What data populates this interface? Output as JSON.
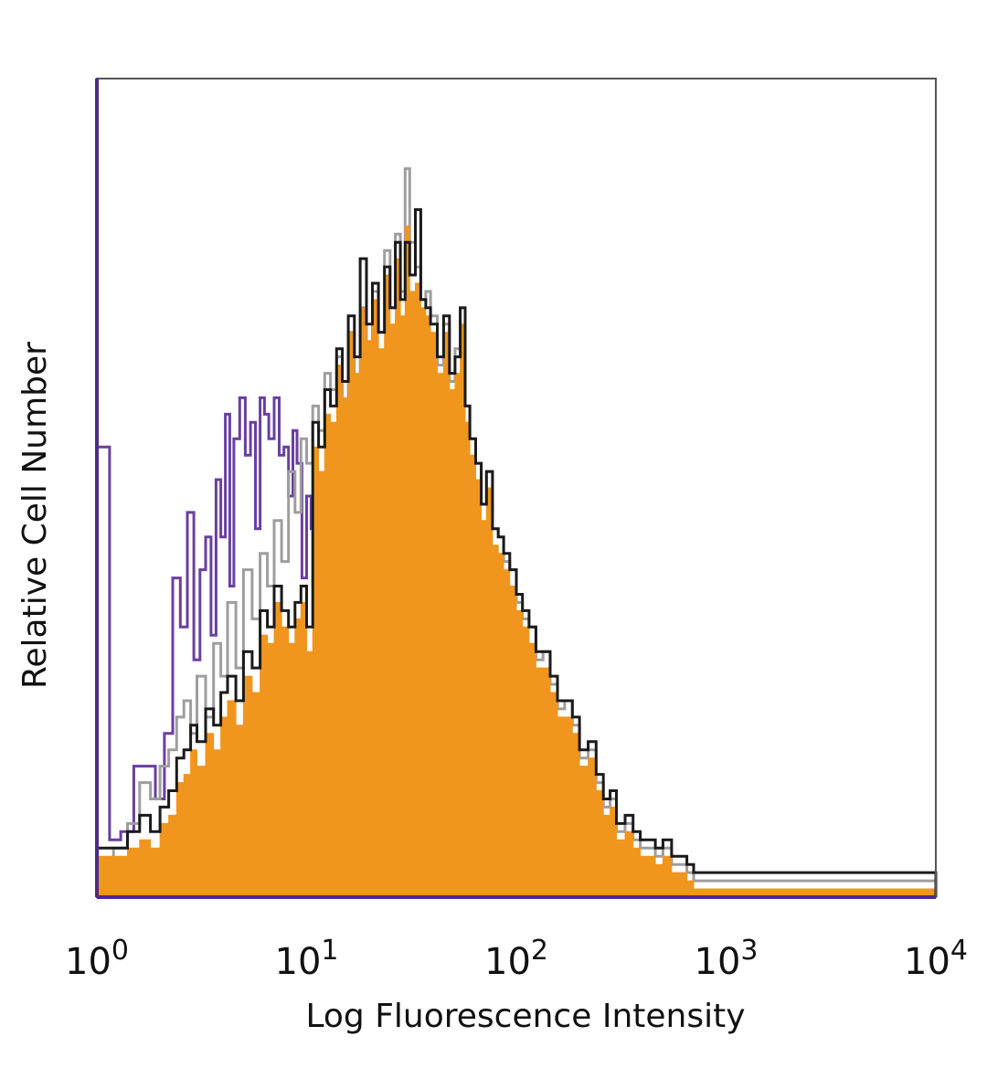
{
  "chart_data": {
    "type": "area",
    "title": "",
    "xlabel": "Log Fluorescence Intensity",
    "ylabel": "Relative Cell Number",
    "x_scale": "log",
    "xlim": [
      1,
      10000
    ],
    "ylim": [
      0,
      100
    ],
    "grid": false,
    "legend": "none",
    "x_ticks": [
      {
        "base": "10",
        "exp": "0"
      },
      {
        "base": "10",
        "exp": "1"
      },
      {
        "base": "10",
        "exp": "2"
      },
      {
        "base": "10",
        "exp": "3"
      },
      {
        "base": "10",
        "exp": "4"
      }
    ],
    "series": [
      {
        "color": "#6a3fa0",
        "style": "line",
        "x": [
          1.0,
          1.15,
          1.3,
          1.5,
          1.7,
          1.9,
          2.1,
          2.3,
          2.5,
          2.7,
          2.9,
          3.1,
          3.3,
          3.5,
          3.7,
          3.9,
          4.1,
          4.3,
          4.5,
          4.8,
          5.1,
          5.4,
          5.7,
          6.0,
          6.3,
          6.6,
          7.0,
          7.4,
          7.8,
          8.2,
          8.6,
          9.0,
          9.5,
          10.0,
          10.5,
          11.0,
          11.5,
          12.0,
          12.6,
          13.2,
          13.8,
          14.5,
          15.2,
          16.0,
          17.0,
          18.0,
          19.0,
          20.0,
          21.0,
          22.0,
          23.0,
          24.0,
          25.0,
          27.0,
          30.0,
          40.0,
          55.0,
          58.0,
          62.0,
          90.0,
          100.0,
          105.0,
          120.0,
          300.0,
          1000.0,
          10000.0
        ],
        "y": [
          55,
          7,
          8,
          16,
          16,
          12,
          20,
          39,
          33,
          47,
          29,
          40,
          44,
          32,
          51,
          44,
          59,
          38,
          56,
          61,
          54,
          58,
          45,
          61,
          59,
          56,
          61,
          54,
          55,
          49,
          57,
          53,
          39,
          49,
          45,
          51,
          43,
          35,
          36,
          28,
          25,
          21,
          17,
          16,
          15,
          14,
          12,
          9,
          6,
          4,
          3,
          2,
          1,
          0.5,
          0.5,
          0.3,
          3,
          5,
          2,
          0.3,
          5,
          2,
          0.3,
          0,
          0,
          0
        ]
      },
      {
        "color": "#9e9e9e",
        "style": "line",
        "x": [
          1.0,
          1.2,
          1.4,
          1.6,
          1.8,
          2.0,
          2.2,
          2.4,
          2.6,
          2.8,
          3.0,
          3.3,
          3.6,
          3.9,
          4.2,
          4.6,
          5.0,
          5.5,
          6.0,
          6.5,
          7.0,
          7.6,
          8.2,
          8.8,
          9.4,
          10.0,
          10.7,
          11.4,
          12.2,
          13.0,
          13.9,
          14.8,
          15.8,
          16.9,
          18.0,
          19.3,
          20.6,
          22.0,
          23.5,
          25.0,
          26.5,
          28.0,
          29.5,
          31.0,
          33.0,
          35.0,
          37.0,
          39.0,
          42.0,
          45.0,
          48.0,
          51.0,
          54.0,
          57.0,
          60.0,
          64.0,
          68.0,
          72.0,
          77.0,
          82.0,
          87.0,
          93.0,
          100.0,
          107.0,
          115.0,
          124.0,
          134.0,
          145.0,
          157.0,
          170.0,
          185.0,
          200.0,
          220.0,
          240.0,
          260.0,
          280.0,
          300.0,
          330.0,
          360.0,
          390.0,
          420.0,
          460.0,
          500.0,
          550.0,
          600.0,
          650.0,
          700.0,
          10000.0
        ],
        "y": [
          3,
          6,
          9,
          14,
          12,
          16,
          18,
          22,
          24,
          20,
          27,
          22,
          31,
          27,
          36,
          28,
          40,
          34,
          42,
          38,
          46,
          41,
          52,
          47,
          56,
          53,
          60,
          57,
          64,
          62,
          66,
          60,
          69,
          63,
          72,
          67,
          74,
          69,
          79,
          72,
          81,
          74,
          89,
          80,
          77,
          73,
          74,
          71,
          65,
          70,
          63,
          67,
          72,
          60,
          56,
          53,
          48,
          52,
          45,
          44,
          41,
          40,
          36,
          34,
          33,
          29,
          30,
          26,
          23,
          24,
          21,
          17,
          18,
          14,
          11,
          12,
          8,
          9,
          7,
          6,
          6,
          5,
          6,
          4,
          4,
          3,
          2,
          0
        ]
      },
      {
        "color": "#f0961e",
        "style": "filled",
        "x": [
          1.0,
          1.2,
          1.4,
          1.6,
          1.8,
          2.0,
          2.2,
          2.4,
          2.6,
          2.8,
          3.0,
          3.3,
          3.6,
          3.9,
          4.2,
          4.6,
          5.0,
          5.5,
          6.0,
          6.5,
          7.0,
          7.6,
          8.2,
          8.8,
          9.4,
          10.0,
          10.7,
          11.4,
          12.2,
          13.0,
          13.9,
          14.8,
          15.8,
          16.9,
          18.0,
          19.3,
          20.6,
          22.0,
          23.5,
          25.0,
          26.5,
          28.0,
          29.5,
          31.0,
          33.0,
          35.0,
          37.0,
          39.0,
          42.0,
          45.0,
          48.0,
          51.0,
          54.0,
          57.0,
          60.0,
          64.0,
          68.0,
          72.0,
          77.0,
          82.0,
          87.0,
          93.0,
          100.0,
          107.0,
          115.0,
          124.0,
          134.0,
          145.0,
          157.0,
          170.0,
          185.0,
          200.0,
          220.0,
          240.0,
          260.0,
          280.0,
          300.0,
          330.0,
          360.0,
          390.0,
          420.0,
          460.0,
          500.0,
          550.0,
          600.0,
          650.0,
          700.0,
          10000.0
        ],
        "y": [
          5,
          5,
          6,
          7,
          6,
          9,
          10,
          14,
          15,
          18,
          16,
          20,
          18,
          22,
          24,
          21,
          27,
          25,
          32,
          31,
          36,
          33,
          31,
          34,
          36,
          30,
          55,
          52,
          59,
          58,
          65,
          61,
          69,
          64,
          72,
          68,
          73,
          67,
          76,
          70,
          78,
          71,
          82,
          74,
          75,
          72,
          71,
          69,
          64,
          69,
          62,
          64,
          70,
          58,
          54,
          51,
          46,
          50,
          43,
          42,
          40,
          38,
          35,
          33,
          31,
          28,
          28,
          25,
          22,
          22,
          20,
          16,
          17,
          13,
          10,
          11,
          7,
          8,
          6,
          5,
          5,
          4,
          5,
          3,
          3,
          2,
          1,
          0
        ]
      },
      {
        "color": "#1a1a1a",
        "style": "line",
        "x": [
          1.0,
          1.2,
          1.4,
          1.6,
          1.8,
          2.0,
          2.2,
          2.4,
          2.6,
          2.8,
          3.0,
          3.3,
          3.6,
          3.9,
          4.2,
          4.6,
          5.0,
          5.5,
          6.0,
          6.5,
          7.0,
          7.6,
          8.2,
          8.8,
          9.4,
          10.0,
          10.7,
          11.4,
          12.2,
          13.0,
          13.9,
          14.8,
          15.8,
          16.9,
          18.0,
          19.3,
          20.6,
          22.0,
          23.5,
          25.0,
          26.5,
          28.0,
          29.5,
          31.0,
          33.0,
          35.0,
          37.0,
          39.0,
          42.0,
          45.0,
          48.0,
          51.0,
          54.0,
          57.0,
          60.0,
          64.0,
          68.0,
          72.0,
          77.0,
          82.0,
          87.0,
          93.0,
          100.0,
          107.0,
          115.0,
          124.0,
          134.0,
          145.0,
          157.0,
          170.0,
          185.0,
          200.0,
          220.0,
          240.0,
          260.0,
          280.0,
          300.0,
          330.0,
          360.0,
          390.0,
          420.0,
          460.0,
          500.0,
          550.0,
          600.0,
          650.0,
          700.0,
          10000.0
        ],
        "y": [
          6,
          6,
          8,
          10,
          8,
          11,
          13,
          17,
          18,
          21,
          19,
          23,
          21,
          25,
          27,
          24,
          30,
          28,
          35,
          33,
          38,
          35,
          33,
          36,
          38,
          33,
          58,
          55,
          62,
          60,
          67,
          63,
          71,
          66,
          78,
          70,
          75,
          69,
          77,
          72,
          80,
          73,
          80,
          76,
          84,
          73,
          72,
          70,
          66,
          71,
          64,
          66,
          72,
          60,
          56,
          53,
          48,
          52,
          45,
          44,
          42,
          40,
          37,
          35,
          33,
          30,
          30,
          27,
          24,
          24,
          22,
          18,
          19,
          15,
          12,
          13,
          9,
          10,
          8,
          7,
          7,
          6,
          7,
          5,
          5,
          4,
          3,
          0
        ]
      }
    ]
  }
}
